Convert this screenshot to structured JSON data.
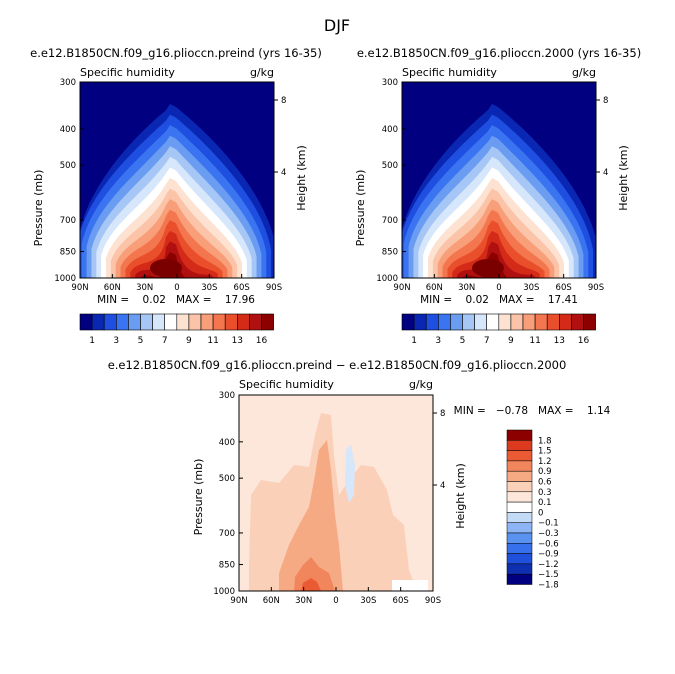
{
  "page_title": "DJF",
  "colors": {
    "neg": [
      "#000080",
      "#0a27b4",
      "#1f4fe0",
      "#3a74f0",
      "#6a9cf2",
      "#a6c6f6",
      "#d6e6fb"
    ],
    "pos": [
      "#ffffff",
      "#fde2d2",
      "#fbc4a8",
      "#f89e78",
      "#f3764e",
      "#ea4f2c",
      "#d42a18",
      "#b01010",
      "#8c0000"
    ],
    "diff": {
      "n18": "#000080",
      "n15": "#0d2fb0",
      "n12": "#1f50dc",
      "n09": "#3670ec",
      "n06": "#5a92f0",
      "n03": "#8db4f4",
      "n01": "#c4dbf8",
      "z": "#ffffff",
      "p01": "#fde7da",
      "p03": "#fbd0b8",
      "p06": "#f6aa84",
      "p09": "#f1855c",
      "p12": "#ea5b34",
      "p15": "#dc3a1e",
      "p18": "#8c0000"
    }
  },
  "chart_data": [
    {
      "type": "contour",
      "title": "e.e12.B1850CN.f09_g16.plioccn.preind (yrs 16-35)",
      "left_label": "Specific humidity",
      "right_label": "g/kg",
      "ylabel": "Pressure (mb)",
      "ylabel_right": "Height (km)",
      "x_ticks": [
        "90N",
        "60N",
        "30N",
        "0",
        "30S",
        "60S",
        "90S"
      ],
      "y_ticks": [
        "300",
        "400",
        "500",
        "700",
        "850",
        "1000"
      ],
      "height_ticks": [
        "8",
        "4"
      ],
      "min_max": "MIN =    0.02   MAX =    17.96",
      "colorbar_labels": [
        "1",
        "3",
        "5",
        "7",
        "9",
        "11",
        "13",
        "16"
      ],
      "levels": [
        1,
        2,
        3,
        4,
        5,
        6,
        7,
        8,
        9,
        10,
        11,
        12,
        13,
        14,
        16
      ]
    },
    {
      "type": "contour",
      "title": "e.e12.B1850CN.f09_g16.plioccn.2000 (yrs 16-35)",
      "left_label": "Specific humidity",
      "right_label": "g/kg",
      "ylabel": "Pressure (mb)",
      "ylabel_right": "Height (km)",
      "x_ticks": [
        "90N",
        "60N",
        "30N",
        "0",
        "30S",
        "60S",
        "90S"
      ],
      "y_ticks": [
        "300",
        "400",
        "500",
        "700",
        "850",
        "1000"
      ],
      "height_ticks": [
        "8",
        "4"
      ],
      "min_max": "MIN =    0.02   MAX =    17.41",
      "colorbar_labels": [
        "1",
        "3",
        "5",
        "7",
        "9",
        "11",
        "13",
        "16"
      ],
      "levels": [
        1,
        2,
        3,
        4,
        5,
        6,
        7,
        8,
        9,
        10,
        11,
        12,
        13,
        14,
        16
      ]
    },
    {
      "type": "contour",
      "title": "e.e12.B1850CN.f09_g16.plioccn.preind − e.e12.B1850CN.f09_g16.plioccn.2000",
      "left_label": "Specific humidity",
      "right_label": "g/kg",
      "ylabel": "Pressure (mb)",
      "ylabel_right": "Height (km)",
      "x_ticks": [
        "90N",
        "60N",
        "30N",
        "0",
        "30S",
        "60S",
        "90S"
      ],
      "y_ticks": [
        "300",
        "400",
        "500",
        "700",
        "850",
        "1000"
      ],
      "height_ticks": [
        "8",
        "4"
      ],
      "min_max": "MIN =   −0.78   MAX =    1.14",
      "colorbar_labels": [
        "1.8",
        "1.5",
        "1.2",
        "0.9",
        "0.6",
        "0.3",
        "0.1",
        "0",
        "−0.1",
        "−0.3",
        "−0.6",
        "−0.9",
        "−1.2",
        "−1.5",
        "−1.8"
      ],
      "levels": [
        1.8,
        1.5,
        1.2,
        0.9,
        0.6,
        0.3,
        0.1,
        0,
        -0.1,
        -0.3,
        -0.6,
        -0.9,
        -1.2,
        -1.5,
        -1.8
      ]
    }
  ]
}
